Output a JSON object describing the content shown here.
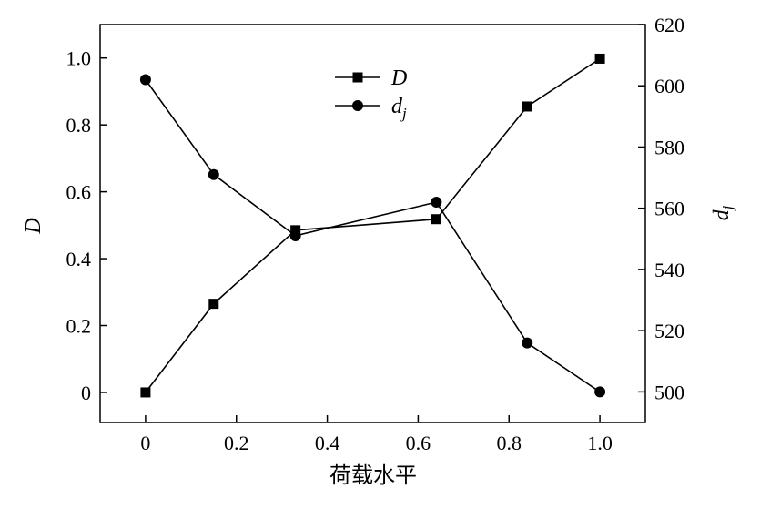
{
  "chart_data": {
    "type": "line",
    "xlabel": "荷载水平",
    "ylabel_left": "D",
    "ylabel_right_base": "d",
    "ylabel_right_sub": "j",
    "x_ticks": [
      "0",
      "0.2",
      "0.4",
      "0.6",
      "0.8",
      "1.0"
    ],
    "y_left_ticks": [
      "0",
      "0.2",
      "0.4",
      "0.6",
      "0.8",
      "1.0"
    ],
    "y_right_ticks": [
      "500",
      "520",
      "540",
      "560",
      "580",
      "600",
      "620"
    ],
    "xlim": [
      -0.1,
      1.1
    ],
    "ylim_left": [
      -0.09,
      1.1
    ],
    "ylim_right": [
      490,
      620
    ],
    "legend_position": "top-center",
    "grid": false,
    "series": [
      {
        "name": "D",
        "legend_base": "D",
        "legend_sub": "",
        "axis": "left",
        "marker": "square",
        "x": [
          0,
          0.15,
          0.33,
          0.64,
          0.84,
          1.0
        ],
        "y": [
          0.0,
          0.265,
          0.485,
          0.518,
          0.855,
          0.998
        ]
      },
      {
        "name": "dj",
        "legend_base": "d",
        "legend_sub": "j",
        "axis": "right",
        "marker": "circle",
        "x": [
          0,
          0.15,
          0.33,
          0.64,
          0.84,
          1.0
        ],
        "y": [
          602,
          571,
          551,
          562,
          516,
          500
        ]
      }
    ]
  }
}
